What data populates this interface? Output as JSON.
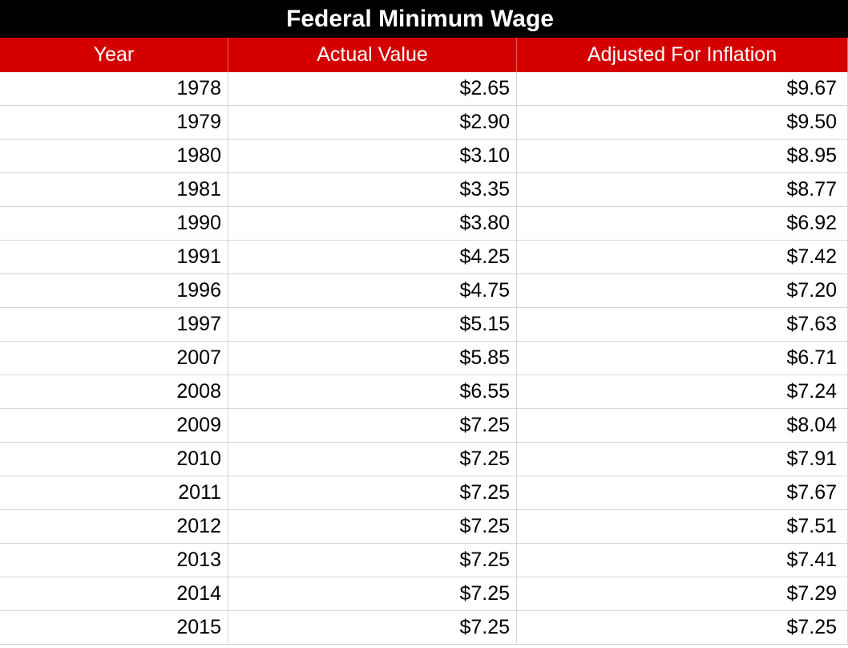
{
  "title": "Federal Minimum Wage",
  "columns": [
    "Year",
    "Actual Value",
    "Adjusted For Inflation"
  ],
  "rows": [
    {
      "year": "1978",
      "actual": "$2.65",
      "adjusted": "$9.67"
    },
    {
      "year": "1979",
      "actual": "$2.90",
      "adjusted": "$9.50"
    },
    {
      "year": "1980",
      "actual": "$3.10",
      "adjusted": "$8.95"
    },
    {
      "year": "1981",
      "actual": "$3.35",
      "adjusted": "$8.77"
    },
    {
      "year": "1990",
      "actual": "$3.80",
      "adjusted": "$6.92"
    },
    {
      "year": "1991",
      "actual": "$4.25",
      "adjusted": "$7.42"
    },
    {
      "year": "1996",
      "actual": "$4.75",
      "adjusted": "$7.20"
    },
    {
      "year": "1997",
      "actual": "$5.15",
      "adjusted": "$7.63"
    },
    {
      "year": "2007",
      "actual": "$5.85",
      "adjusted": "$6.71"
    },
    {
      "year": "2008",
      "actual": "$6.55",
      "adjusted": "$7.24"
    },
    {
      "year": "2009",
      "actual": "$7.25",
      "adjusted": "$8.04"
    },
    {
      "year": "2010",
      "actual": "$7.25",
      "adjusted": "$7.91"
    },
    {
      "year": "2011",
      "actual": "$7.25",
      "adjusted": "$7.67"
    },
    {
      "year": "2012",
      "actual": "$7.25",
      "adjusted": "$7.51"
    },
    {
      "year": "2013",
      "actual": "$7.25",
      "adjusted": "$7.41"
    },
    {
      "year": "2014",
      "actual": "$7.25",
      "adjusted": "$7.29"
    },
    {
      "year": "2015",
      "actual": "$7.25",
      "adjusted": "$7.25"
    }
  ],
  "colors": {
    "title_bg": "#000000",
    "header_bg": "#d40000",
    "header_text": "#ffffff",
    "grid": "#d6d6d6"
  }
}
